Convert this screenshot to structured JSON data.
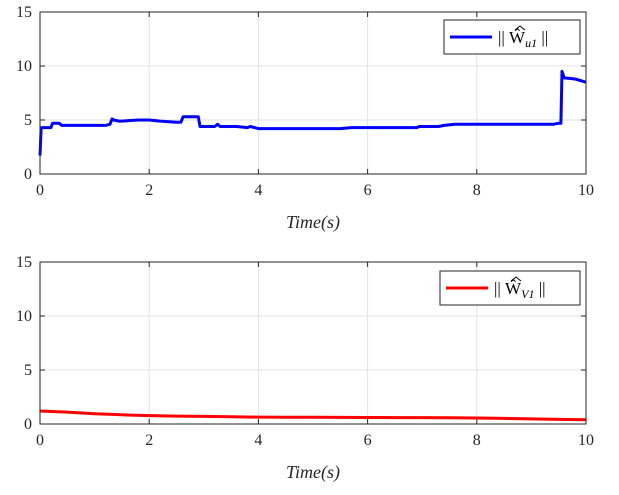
{
  "chart_data": [
    {
      "type": "line",
      "xlabel": "Time(s)",
      "ylabel": "",
      "xlim": [
        0,
        10
      ],
      "ylim": [
        0,
        15
      ],
      "xticks": [
        0,
        2,
        4,
        6,
        8,
        10
      ],
      "yticks": [
        0,
        5,
        10,
        15
      ],
      "grid": true,
      "legend_position": "top-right",
      "series": [
        {
          "name": "|| Ŵ_u1 ||",
          "legend_main": "|| Ŵ",
          "legend_sub": "u1",
          "legend_tail": " ||",
          "color": "#0000ff",
          "x": [
            0.0,
            0.02,
            0.03,
            0.2,
            0.23,
            0.35,
            0.4,
            0.5,
            0.6,
            1.2,
            1.28,
            1.32,
            1.35,
            1.45,
            1.5,
            1.8,
            2.0,
            2.2,
            2.5,
            2.58,
            2.62,
            2.9,
            2.93,
            3.0,
            3.2,
            3.25,
            3.3,
            3.6,
            3.8,
            3.85,
            4.0,
            4.5,
            5.0,
            5.5,
            5.7,
            5.75,
            6.0,
            6.5,
            6.9,
            6.95,
            7.3,
            7.4,
            7.6,
            8.0,
            8.5,
            9.0,
            9.4,
            9.5,
            9.54,
            9.56,
            9.6,
            9.8,
            10.0
          ],
          "values": [
            1.7,
            4.2,
            4.3,
            4.3,
            4.7,
            4.7,
            4.5,
            4.5,
            4.5,
            4.5,
            4.6,
            5.1,
            5.0,
            4.9,
            4.9,
            5.0,
            5.0,
            4.9,
            4.8,
            4.8,
            5.3,
            5.3,
            4.4,
            4.4,
            4.4,
            4.6,
            4.4,
            4.4,
            4.3,
            4.4,
            4.2,
            4.2,
            4.2,
            4.2,
            4.3,
            4.3,
            4.3,
            4.3,
            4.3,
            4.4,
            4.4,
            4.5,
            4.6,
            4.6,
            4.6,
            4.6,
            4.6,
            4.7,
            4.7,
            9.5,
            8.9,
            8.8,
            8.5
          ]
        }
      ]
    },
    {
      "type": "line",
      "xlabel": "Time(s)",
      "ylabel": "",
      "xlim": [
        0,
        10
      ],
      "ylim": [
        0,
        15
      ],
      "xticks": [
        0,
        2,
        4,
        6,
        8,
        10
      ],
      "yticks": [
        0,
        5,
        10,
        15
      ],
      "grid": true,
      "legend_position": "top-right",
      "series": [
        {
          "name": "|| Ŵ_V1 ||",
          "legend_main": "|| Ŵ",
          "legend_sub": "V1",
          "legend_tail": " ||",
          "color": "#ff0000",
          "x": [
            0,
            0.5,
            1,
            1.5,
            2,
            2.5,
            3,
            3.5,
            4,
            4.5,
            5,
            5.5,
            6,
            6.5,
            7,
            7.5,
            8,
            8.5,
            9,
            9.5,
            10
          ],
          "values": [
            1.2,
            1.1,
            0.95,
            0.85,
            0.78,
            0.73,
            0.7,
            0.67,
            0.64,
            0.63,
            0.62,
            0.61,
            0.6,
            0.59,
            0.59,
            0.58,
            0.56,
            0.52,
            0.47,
            0.43,
            0.4
          ]
        }
      ]
    }
  ]
}
